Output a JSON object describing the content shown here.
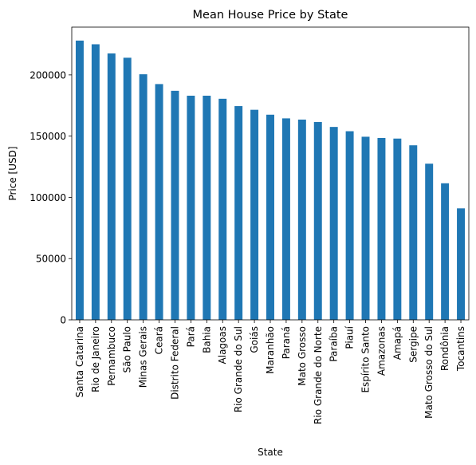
{
  "chart_data": {
    "type": "bar",
    "title": "Mean House Price by State",
    "xlabel": "State",
    "ylabel": "Price [USD]",
    "ylim": [
      0,
      239000
    ],
    "yticks": [
      0,
      50000,
      100000,
      150000,
      200000
    ],
    "ytick_labels": [
      "0",
      "50000",
      "100000",
      "150000",
      "200000"
    ],
    "grid": false,
    "bar_color": "#1f77b4",
    "categories": [
      "Santa Catarina",
      "Rio de Janeiro",
      "Pernambuco",
      "São Paulo",
      "Minas Gerais",
      "Ceará",
      "Distrito Federal",
      "Pará",
      "Bahia",
      "Alagoas",
      "Rio Grande do Sul",
      "Goiás",
      "Maranhão",
      "Paraná",
      "Mato Grosso",
      "Rio Grande do Norte",
      "Paraíba",
      "Piauí",
      "Espírito Santo",
      "Amazonas",
      "Amapá",
      "Sergipe",
      "Mato Grosso do Sul",
      "Rondônia",
      "Tocantins"
    ],
    "values": [
      228000,
      225000,
      217500,
      214000,
      200500,
      192500,
      187000,
      183000,
      183000,
      180500,
      174500,
      171500,
      167500,
      164500,
      163500,
      161500,
      157500,
      154000,
      149500,
      148500,
      148000,
      142500,
      127500,
      111500,
      91000
    ]
  }
}
